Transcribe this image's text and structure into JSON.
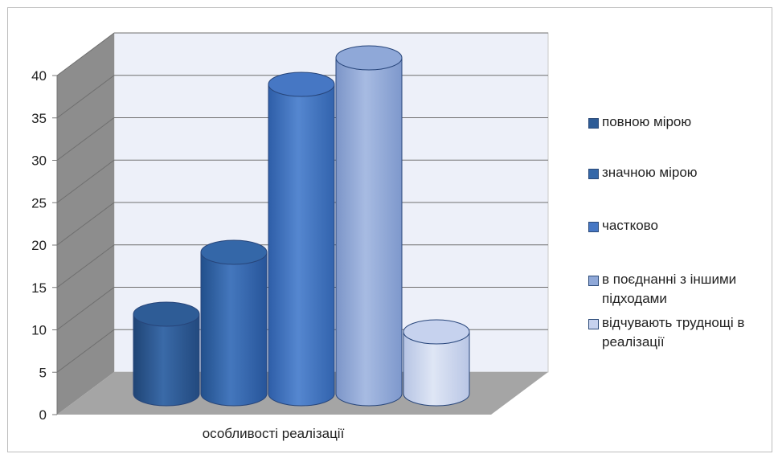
{
  "chart_data": {
    "type": "bar",
    "style": "3d-cylinder",
    "categories": [
      "особливості реалізації"
    ],
    "series": [
      {
        "name": "повною мірою",
        "values": [
          9
        ]
      },
      {
        "name": "значною мірою",
        "values": [
          16
        ]
      },
      {
        "name": "частково",
        "values": [
          35
        ]
      },
      {
        "name": "в поєднанні з іншими підходами",
        "values": [
          38
        ]
      },
      {
        "name": "відчувають труднощі в реалізації",
        "values": [
          7
        ]
      }
    ],
    "ylim": [
      0,
      40
    ],
    "yticks": [
      "0",
      "5",
      "10",
      "15",
      "20",
      "25",
      "30",
      "35",
      "40"
    ],
    "grid": true,
    "legend_position": "right",
    "colors": [
      "#2e5c96",
      "#3467a8",
      "#4677c4",
      "#8fa8d8",
      "#c6d2ee"
    ],
    "xlabel": "",
    "ylabel": "",
    "title": ""
  }
}
